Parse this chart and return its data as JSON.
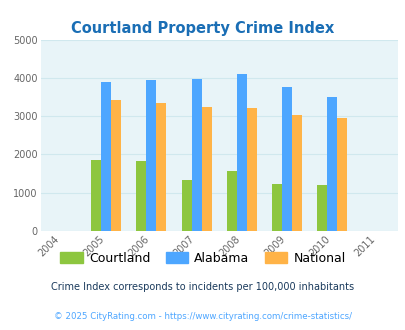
{
  "title": "Courtland Property Crime Index",
  "all_years": [
    2004,
    2005,
    2006,
    2007,
    2008,
    2009,
    2010,
    2011
  ],
  "data_years": [
    2005,
    2006,
    2007,
    2008,
    2009,
    2010
  ],
  "courtland": [
    1860,
    1840,
    1340,
    1580,
    1230,
    1200
  ],
  "alabama": [
    3900,
    3940,
    3970,
    4090,
    3770,
    3500
  ],
  "national": [
    3430,
    3340,
    3240,
    3210,
    3040,
    2950
  ],
  "bar_colors": {
    "courtland": "#8dc63f",
    "alabama": "#4da6ff",
    "national": "#ffb347"
  },
  "legend_labels": [
    "Courtland",
    "Alabama",
    "National"
  ],
  "ylim": [
    0,
    5000
  ],
  "yticks": [
    0,
    1000,
    2000,
    3000,
    4000,
    5000
  ],
  "footnote1": "Crime Index corresponds to incidents per 100,000 inhabitants",
  "footnote2": "© 2025 CityRating.com - https://www.cityrating.com/crime-statistics/",
  "bg_color": "#e8f4f8",
  "title_color": "#1a6eb5",
  "bar_width": 0.22,
  "grid_color": "#d0e8ee",
  "footnote1_color": "#1a3a5c",
  "footnote2_color": "#4da6ff"
}
